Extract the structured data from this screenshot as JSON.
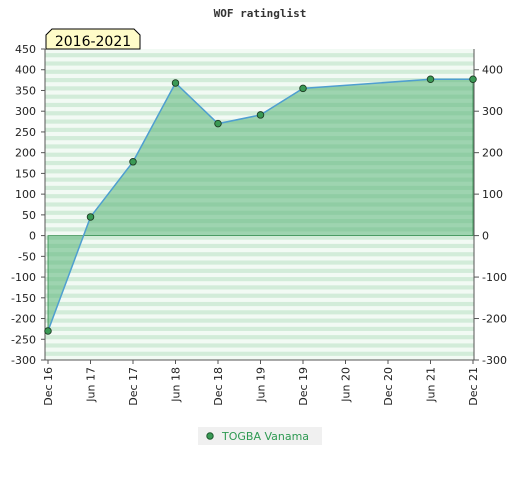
{
  "chart_data": {
    "type": "area",
    "title": "WOF ratinglist",
    "badge": "2016-2021",
    "x_tick_labels": [
      "Dec 16",
      "Jun 17",
      "Dec 17",
      "Jun 18",
      "Dec 18",
      "Jun 19",
      "Dec 19",
      "Jun 20",
      "Dec 20",
      "Jun 21",
      "Dec 21"
    ],
    "left_y_ticks": [
      "450",
      "400",
      "350",
      "300",
      "250",
      "200",
      "150",
      "100",
      "50",
      "0",
      "-50",
      "-100",
      "-150",
      "-200",
      "-250",
      "-300"
    ],
    "right_y_ticks": [
      "400",
      "300",
      "200",
      "100",
      "0",
      "-100",
      "-200",
      "-300"
    ],
    "ylim": [
      -300,
      450
    ],
    "grid": "horizontal bands",
    "legend_position": "bottom",
    "series": [
      {
        "name": "TOGBA Vanama",
        "points": [
          {
            "x": "Dec 16",
            "y": -230
          },
          {
            "x": "Jun 17",
            "y": 45
          },
          {
            "x": "Dec 17",
            "y": 178
          },
          {
            "x": "Jun 18",
            "y": 368
          },
          {
            "x": "Dec 18",
            "y": 270
          },
          {
            "x": "Jun 19",
            "y": 291
          },
          {
            "x": "Dec 19",
            "y": 355
          },
          {
            "x": "Jun 21",
            "y": 377
          },
          {
            "x": "Dec 21",
            "y": 377
          }
        ]
      }
    ],
    "colors": {
      "line": "#4f9fd0",
      "fill": "#5ab579",
      "marker": "#3a9a55",
      "band_dark": "#c4e6cd",
      "band_light": "#f2faf4",
      "badge_bg": "#fffcc8",
      "legend_text": "#2e9a52"
    }
  }
}
